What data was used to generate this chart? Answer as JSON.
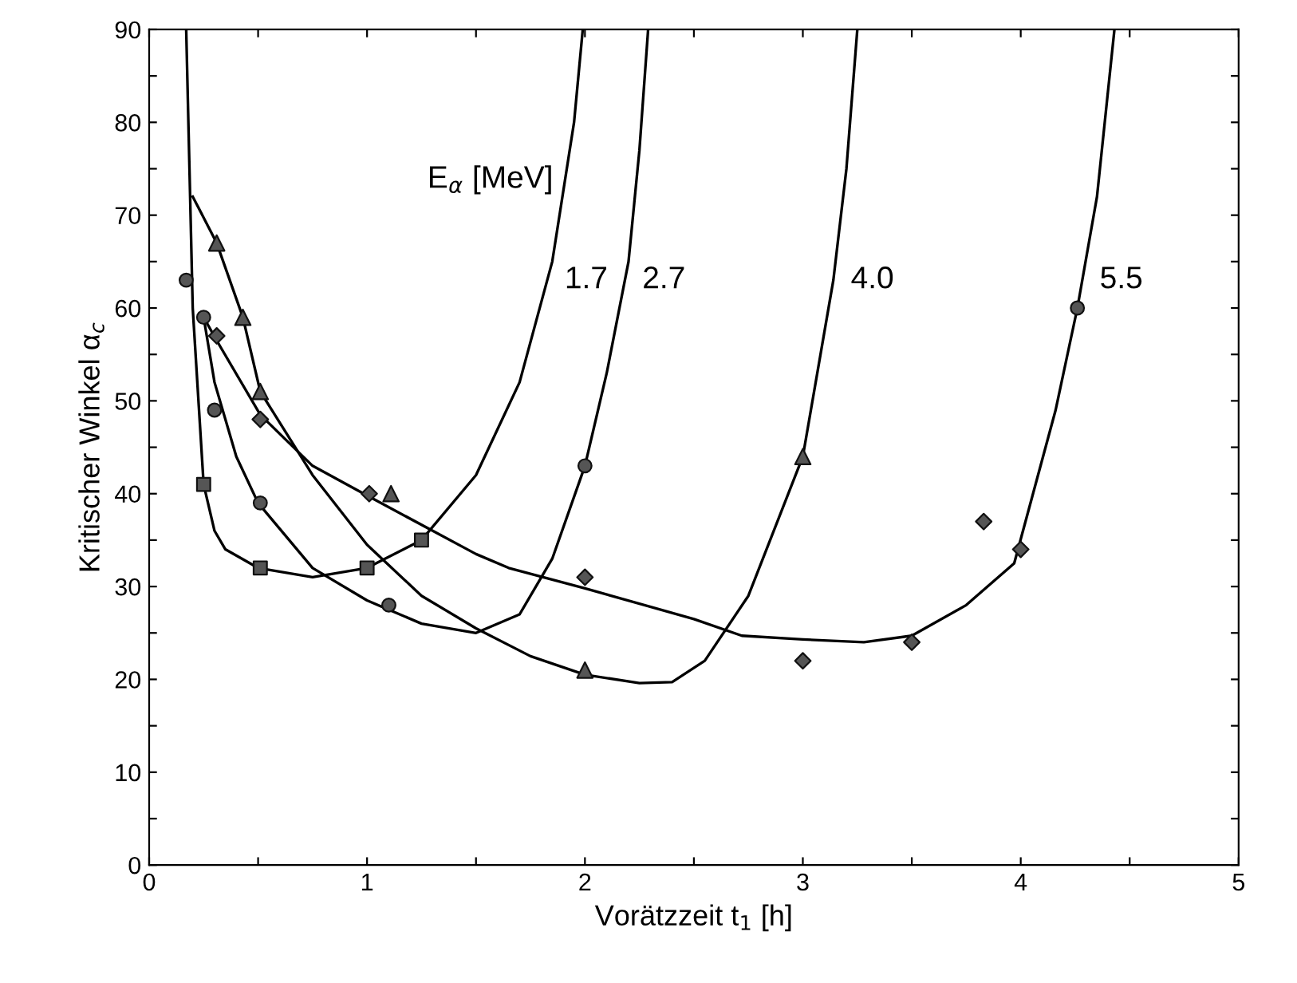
{
  "chart_data": {
    "type": "scatter",
    "xlabel": "Vorätzzeit t$_{1}$ [h]",
    "ylabel": "Kritischer Winkel α$_{c}$",
    "xlim": [
      0,
      5
    ],
    "ylim": [
      0,
      90
    ],
    "xticks": [
      0,
      {
        "value": 0.5,
        "label": null
      },
      1,
      {
        "value": 1.5,
        "label": null
      },
      2,
      {
        "value": 2.5,
        "label": null
      },
      3,
      {
        "value": 3.5,
        "label": null
      },
      4,
      {
        "value": 4.5,
        "label": null
      },
      5
    ],
    "yticks": [
      0,
      {
        "value": 5,
        "label": null
      },
      10,
      {
        "value": 15,
        "label": null
      },
      20,
      {
        "value": 25,
        "label": null
      },
      30,
      {
        "value": 35,
        "label": null
      },
      40,
      {
        "value": 45,
        "label": null
      },
      50,
      {
        "value": 55,
        "label": null
      },
      60,
      {
        "value": 65,
        "label": null
      },
      70,
      {
        "value": 75,
        "label": null
      },
      80,
      {
        "value": 85,
        "label": null
      },
      90
    ],
    "grid": false,
    "legend": false,
    "series": [
      {
        "marker": "square",
        "color": "#555555",
        "x": [
          0.25,
          0.51,
          1.0,
          1.25
        ],
        "values": [
          41,
          32,
          32,
          35
        ]
      },
      {
        "marker": "circle",
        "color": "#555555",
        "x": [
          0.17,
          0.25,
          0.3,
          0.51,
          1.1,
          2.0,
          4.26
        ],
        "values": [
          63,
          59,
          49,
          39,
          28,
          43,
          60
        ]
      },
      {
        "marker": "triangle",
        "color": "#555555",
        "x": [
          0.31,
          0.43,
          0.51,
          1.11,
          2.0,
          3.0
        ],
        "values": [
          67,
          59,
          51,
          40,
          21,
          44
        ]
      },
      {
        "marker": "diamond",
        "color": "#555555",
        "x": [
          0.31,
          0.51,
          1.01,
          2.0,
          3.0,
          3.5,
          3.83,
          4.0
        ],
        "values": [
          57,
          48,
          40,
          31,
          22,
          24,
          37,
          34
        ]
      },
      {
        "type": "line",
        "name": "1.7",
        "marker": "none",
        "line_style": "solid",
        "color": "#000000",
        "x": [
          0.17,
          0.2,
          0.25,
          0.3,
          0.35,
          0.5,
          0.75,
          1.0,
          1.25,
          1.5,
          1.7,
          1.85,
          1.95,
          1.99
        ],
        "values": [
          90,
          60,
          41,
          36,
          34,
          32,
          31,
          32,
          35,
          42,
          52,
          65,
          80,
          90
        ]
      },
      {
        "type": "line",
        "name": "2.7",
        "marker": "none",
        "line_style": "solid",
        "color": "#000000",
        "x": [
          0.25,
          0.3,
          0.4,
          0.5,
          0.75,
          1.0,
          1.25,
          1.5,
          1.7,
          1.85,
          2.0,
          2.1,
          2.2,
          2.25,
          2.29
        ],
        "values": [
          59,
          52,
          44,
          39,
          32,
          28.5,
          26,
          25,
          27,
          33,
          43,
          53,
          65,
          77,
          90
        ]
      },
      {
        "type": "line",
        "name": "4.0",
        "marker": "none",
        "line_style": "solid",
        "color": "#000000",
        "x": [
          0.2,
          0.31,
          0.43,
          0.51,
          0.75,
          1.0,
          1.25,
          1.5,
          1.75,
          2.0,
          2.25,
          2.4,
          2.55,
          2.75,
          3.0,
          3.14,
          3.2,
          3.25
        ],
        "values": [
          72,
          67,
          59,
          51,
          42,
          34.5,
          29,
          25.5,
          22.5,
          20.5,
          19.6,
          19.7,
          22,
          29,
          44,
          63,
          75,
          90
        ]
      },
      {
        "type": "line",
        "name": "5.5",
        "marker": "none",
        "line_style": "solid",
        "color": "#000000",
        "x": [
          0.25,
          0.31,
          0.51,
          0.75,
          1.0,
          1.5,
          1.65,
          2.0,
          2.5,
          2.72,
          3.0,
          3.28,
          3.5,
          3.75,
          3.97,
          4.16,
          4.26,
          4.35,
          4.43
        ],
        "values": [
          59,
          56.5,
          48.5,
          43,
          39.8,
          33.5,
          32,
          29.8,
          26.5,
          24.7,
          24.3,
          24,
          24.7,
          28,
          32.5,
          49,
          60,
          72,
          90
        ]
      }
    ],
    "legend_title": "E$_{α}$ [MeV]"
  }
}
